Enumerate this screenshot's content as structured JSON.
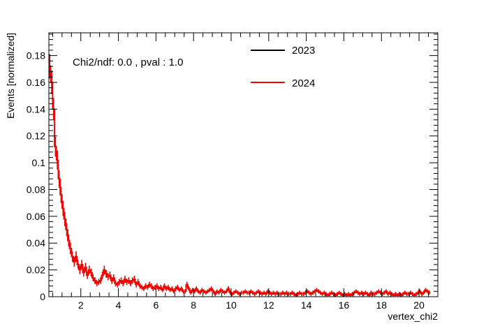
{
  "chart_data": {
    "type": "step-histogram-with-errorbars",
    "title": "",
    "xlabel": "vertex_chi2",
    "ylabel": "Events [normalized]",
    "xlim": [
      0.3,
      21.0
    ],
    "ylim": [
      0,
      0.197
    ],
    "x_major_ticks": [
      2,
      4,
      6,
      8,
      10,
      12,
      14,
      16,
      18,
      20
    ],
    "y_major_ticks": [
      0,
      0.02,
      0.04,
      0.06,
      0.08,
      0.1,
      0.12,
      0.14,
      0.16,
      0.18
    ],
    "y_tick_labels": [
      "0",
      "0.02",
      "0.04",
      "0.06",
      "0.08",
      "0.1",
      "0.12",
      "0.14",
      "0.16",
      "0.18"
    ],
    "annotation": "Chi2/ndf: 0.0 , pval : 1.0",
    "legend_position": "top-right",
    "bin_width": 0.1,
    "series": [
      {
        "name": "2023",
        "color": "#000000",
        "values": [
          0.172,
          0.16,
          0.14,
          0.112,
          0.102,
          0.088,
          0.076,
          0.066,
          0.058,
          0.05,
          0.042,
          0.036,
          0.03,
          0.026,
          0.03,
          0.024,
          0.02,
          0.024,
          0.018,
          0.022,
          0.016,
          0.02,
          0.018,
          0.014,
          0.012,
          0.01,
          0.011,
          0.012,
          0.016,
          0.02,
          0.017,
          0.015,
          0.016,
          0.012,
          0.014,
          0.01,
          0.009,
          0.011,
          0.012,
          0.01,
          0.013,
          0.011,
          0.012,
          0.01,
          0.012,
          0.013,
          0.009,
          0.011,
          0.008,
          0.007,
          0.006,
          0.008,
          0.007,
          0.009,
          0.008,
          0.006,
          0.007,
          0.008,
          0.006,
          0.007,
          0.005,
          0.008,
          0.006,
          0.007,
          0.005,
          0.006,
          0.004,
          0.006,
          0.007,
          0.005,
          0.006,
          0.004,
          0.004,
          0.009,
          0.006,
          0.003,
          0.005,
          0.004,
          0.006,
          0.004,
          0.003,
          0.005,
          0.004,
          0.003,
          0.004,
          0.005,
          0.006,
          0.004,
          0.002,
          0.004,
          0.003,
          0.005,
          0.004,
          0.003,
          0.004,
          0.006,
          0.003,
          0.002,
          0.003,
          0.004,
          0.003,
          0.002,
          0.003,
          0.003,
          0.004,
          0.003,
          0.003,
          0.004,
          0.003,
          0.002,
          0.003,
          0.004,
          0.003,
          0.002,
          0.003,
          0.002,
          0.004,
          0.003,
          0.002,
          0.003,
          0.002,
          0.003,
          0.002,
          0.002,
          0.003,
          0.002,
          0.003,
          0.002,
          0.002,
          0.003,
          0.002,
          0.001,
          0.002,
          0.003,
          0.002,
          0.002,
          0.003,
          0.004,
          0.003,
          0.002,
          0.003,
          0.004,
          0.005,
          0.004,
          0.003,
          0.002,
          0.003,
          0.002,
          0.001,
          0.002,
          0.003,
          0.002,
          0.001,
          0.002,
          0.003,
          0.002,
          0.001,
          0.002,
          0.001,
          0.002,
          0.001,
          0.002,
          0.003,
          0.004,
          0.003,
          0.002,
          0.003,
          0.002,
          0.003,
          0.002,
          0.001,
          0.003,
          0.002,
          0.002,
          0.003,
          0.004,
          0.003,
          0.002,
          0.003,
          0.004,
          0.002,
          0.003,
          0.002,
          0.001,
          0.002,
          0.001,
          0.002,
          0.001,
          0.002,
          0.003,
          0.002,
          0.002,
          0.003,
          0.002,
          0.001,
          0.002,
          0.003,
          0.004,
          0.002,
          0.003,
          0.005,
          0.004,
          0.003
        ]
      },
      {
        "name": "2024",
        "color": "#ff0000",
        "values": [
          0.172,
          0.16,
          0.14,
          0.112,
          0.102,
          0.088,
          0.076,
          0.066,
          0.058,
          0.05,
          0.042,
          0.036,
          0.03,
          0.026,
          0.03,
          0.024,
          0.02,
          0.024,
          0.018,
          0.022,
          0.016,
          0.02,
          0.018,
          0.014,
          0.012,
          0.01,
          0.011,
          0.012,
          0.016,
          0.02,
          0.017,
          0.015,
          0.016,
          0.012,
          0.014,
          0.01,
          0.009,
          0.011,
          0.012,
          0.01,
          0.013,
          0.011,
          0.012,
          0.01,
          0.012,
          0.013,
          0.009,
          0.011,
          0.008,
          0.007,
          0.006,
          0.008,
          0.007,
          0.009,
          0.008,
          0.006,
          0.007,
          0.008,
          0.006,
          0.007,
          0.005,
          0.008,
          0.006,
          0.007,
          0.005,
          0.006,
          0.004,
          0.006,
          0.007,
          0.005,
          0.006,
          0.004,
          0.004,
          0.009,
          0.006,
          0.003,
          0.005,
          0.004,
          0.006,
          0.004,
          0.003,
          0.005,
          0.004,
          0.003,
          0.004,
          0.005,
          0.006,
          0.004,
          0.002,
          0.004,
          0.003,
          0.005,
          0.004,
          0.003,
          0.004,
          0.006,
          0.003,
          0.002,
          0.003,
          0.004,
          0.003,
          0.002,
          0.003,
          0.003,
          0.004,
          0.003,
          0.003,
          0.004,
          0.003,
          0.002,
          0.003,
          0.004,
          0.003,
          0.002,
          0.003,
          0.002,
          0.004,
          0.003,
          0.002,
          0.003,
          0.002,
          0.003,
          0.002,
          0.002,
          0.003,
          0.002,
          0.003,
          0.002,
          0.002,
          0.003,
          0.002,
          0.001,
          0.002,
          0.003,
          0.002,
          0.002,
          0.003,
          0.004,
          0.003,
          0.002,
          0.003,
          0.004,
          0.005,
          0.004,
          0.003,
          0.002,
          0.003,
          0.002,
          0.001,
          0.002,
          0.003,
          0.002,
          0.001,
          0.002,
          0.003,
          0.002,
          0.001,
          0.002,
          0.001,
          0.002,
          0.001,
          0.002,
          0.003,
          0.004,
          0.003,
          0.002,
          0.003,
          0.002,
          0.003,
          0.002,
          0.001,
          0.003,
          0.002,
          0.002,
          0.003,
          0.004,
          0.003,
          0.002,
          0.003,
          0.004,
          0.002,
          0.003,
          0.002,
          0.001,
          0.002,
          0.001,
          0.002,
          0.001,
          0.002,
          0.003,
          0.002,
          0.002,
          0.003,
          0.002,
          0.001,
          0.002,
          0.003,
          0.004,
          0.002,
          0.003,
          0.005,
          0.004,
          0.003
        ]
      }
    ]
  }
}
